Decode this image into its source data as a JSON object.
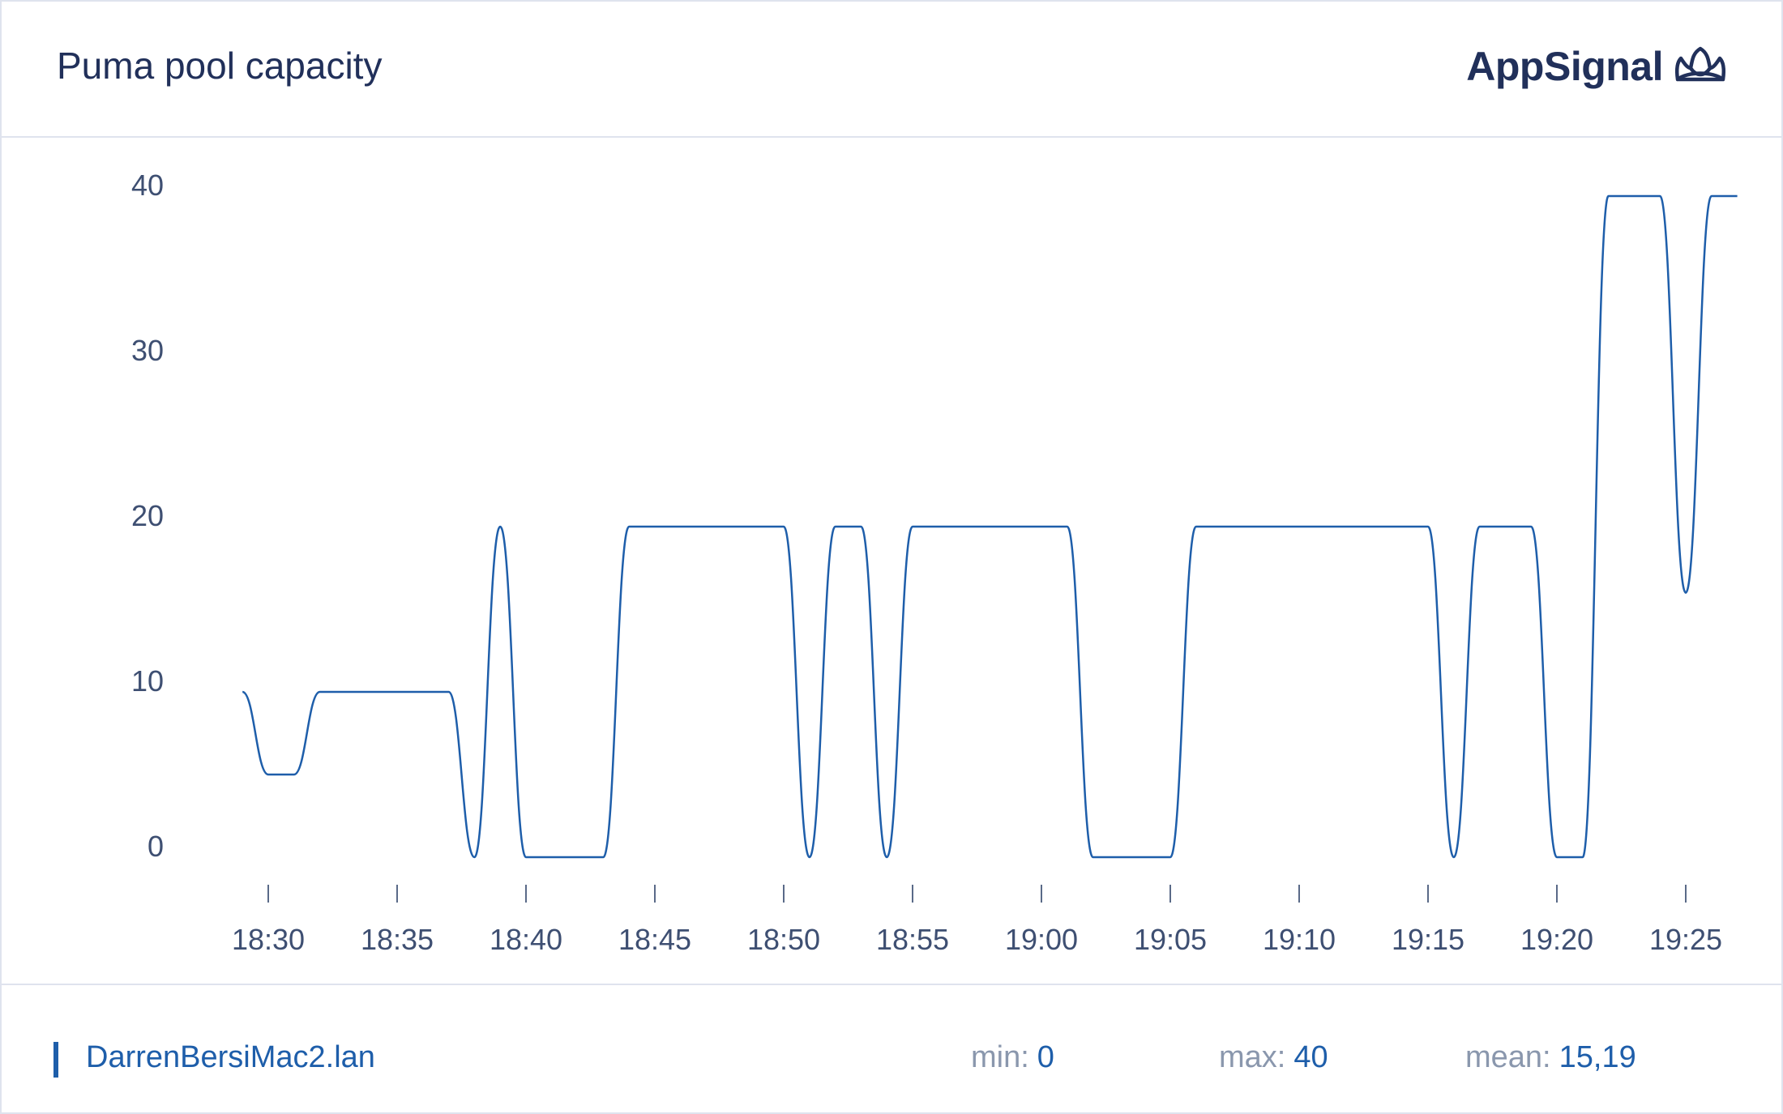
{
  "header": {
    "title": "Puma pool capacity",
    "brand": "AppSignal",
    "brand_icon": "crown-icon"
  },
  "colors": {
    "series": "#1e5eaa",
    "text": "#21305a",
    "axis_text": "#3e4f72",
    "muted": "#8a97ad",
    "border": "#dfe3ee"
  },
  "chart_data": {
    "type": "line",
    "title": "Puma pool capacity",
    "xlabel": "",
    "ylabel": "",
    "ylim": [
      0,
      40
    ],
    "y_ticks": [
      "0",
      "10",
      "20",
      "30",
      "40"
    ],
    "x_ticks": [
      "18:30",
      "18:35",
      "18:40",
      "18:45",
      "18:50",
      "18:55",
      "19:00",
      "19:05",
      "19:10",
      "19:15",
      "19:20",
      "19:25"
    ],
    "grid": false,
    "legend": "bottom-left",
    "series": [
      {
        "name": "DarrenBersiMac2.lan",
        "color": "#1e5eaa",
        "points": [
          [
            "18:29",
            10
          ],
          [
            "18:30",
            5
          ],
          [
            "18:31",
            5
          ],
          [
            "18:32",
            10
          ],
          [
            "18:37",
            10
          ],
          [
            "18:38",
            0
          ],
          [
            "18:39",
            20
          ],
          [
            "18:40",
            0
          ],
          [
            "18:43",
            0
          ],
          [
            "18:44",
            20
          ],
          [
            "18:50",
            20
          ],
          [
            "18:51",
            0
          ],
          [
            "18:52",
            20
          ],
          [
            "18:53",
            20
          ],
          [
            "18:54",
            0
          ],
          [
            "18:55",
            20
          ],
          [
            "19:01",
            20
          ],
          [
            "19:02",
            0
          ],
          [
            "19:05",
            0
          ],
          [
            "19:06",
            20
          ],
          [
            "19:15",
            20
          ],
          [
            "19:16",
            0
          ],
          [
            "19:17",
            20
          ],
          [
            "19:19",
            20
          ],
          [
            "19:20",
            0
          ],
          [
            "19:21",
            0
          ],
          [
            "19:22",
            40
          ],
          [
            "19:24",
            40
          ],
          [
            "19:25",
            16
          ],
          [
            "19:26",
            40
          ],
          [
            "19:27",
            40
          ]
        ]
      }
    ]
  },
  "footer": {
    "series_name": "DarrenBersiMac2.lan",
    "min_label": "min:",
    "min_value": "0",
    "max_label": "max:",
    "max_value": "40",
    "mean_label": "mean:",
    "mean_value": "15,19"
  }
}
